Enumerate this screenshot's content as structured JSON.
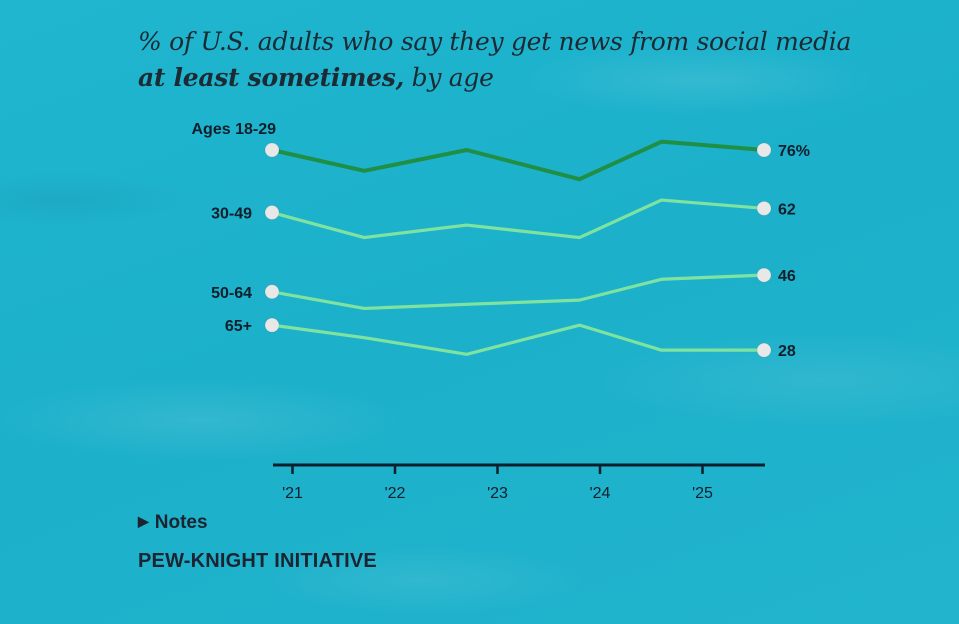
{
  "title": {
    "line1": "% of U.S. adults who say they get news from social media",
    "line2_bold": "at least sometimes,",
    "line2_rest": " by age"
  },
  "notes_label": "Notes",
  "notes_icon": "triangle-right-icon",
  "source": "PEW-KNIGHT INITIATIVE",
  "colors": {
    "dark_green": "#1e8f45",
    "light_green": "#7ee3a0",
    "marker": "#e8e8e8",
    "axis": "#0f1f2c",
    "background": "#1fb2cc"
  },
  "chart_data": {
    "type": "line",
    "title": "% of U.S. adults who say they get news from social media at least sometimes, by age",
    "xlabel": "",
    "ylabel": "",
    "x": [
      2020.8,
      2021.7,
      2022.7,
      2023.8,
      2024.6,
      2025.6
    ],
    "x_ticks": [
      2021,
      2022,
      2023,
      2024,
      2025
    ],
    "x_tick_labels": [
      "'21",
      "'22",
      "'23",
      "'24",
      "'25"
    ],
    "ylim": [
      20,
      85
    ],
    "grid": false,
    "legend": "direct-labels",
    "series": [
      {
        "name": "Ages 18-29",
        "color": "dark_green",
        "values": [
          76,
          71,
          76,
          69,
          78,
          76
        ],
        "end_label": "76%"
      },
      {
        "name": "30-49",
        "color": "light_green",
        "values": [
          61,
          55,
          58,
          55,
          64,
          62
        ],
        "end_label": "62"
      },
      {
        "name": "50-64",
        "color": "light_green",
        "values": [
          42,
          38,
          39,
          40,
          45,
          46
        ],
        "end_label": "46"
      },
      {
        "name": "65+",
        "color": "light_green",
        "values": [
          34,
          31,
          27,
          34,
          28,
          28
        ],
        "end_label": "28"
      }
    ]
  }
}
